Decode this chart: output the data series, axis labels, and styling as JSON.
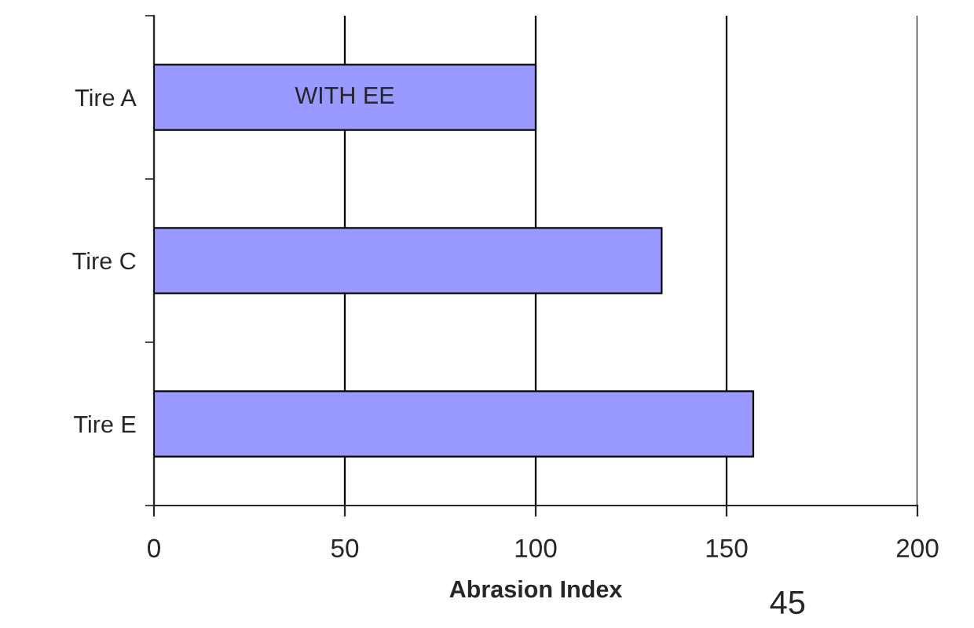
{
  "chart_data": {
    "type": "bar",
    "orientation": "horizontal",
    "xlabel": "Abrasion Index",
    "categories": [
      "Tire A",
      "Tire C",
      "Tire E"
    ],
    "values": [
      100,
      133,
      157
    ],
    "color": "#9999ff",
    "xlim": [
      0,
      200
    ],
    "xticks": [
      0,
      50,
      100,
      150,
      200
    ],
    "grid": "x",
    "annotations": [
      "WITH EE",
      "45"
    ]
  }
}
